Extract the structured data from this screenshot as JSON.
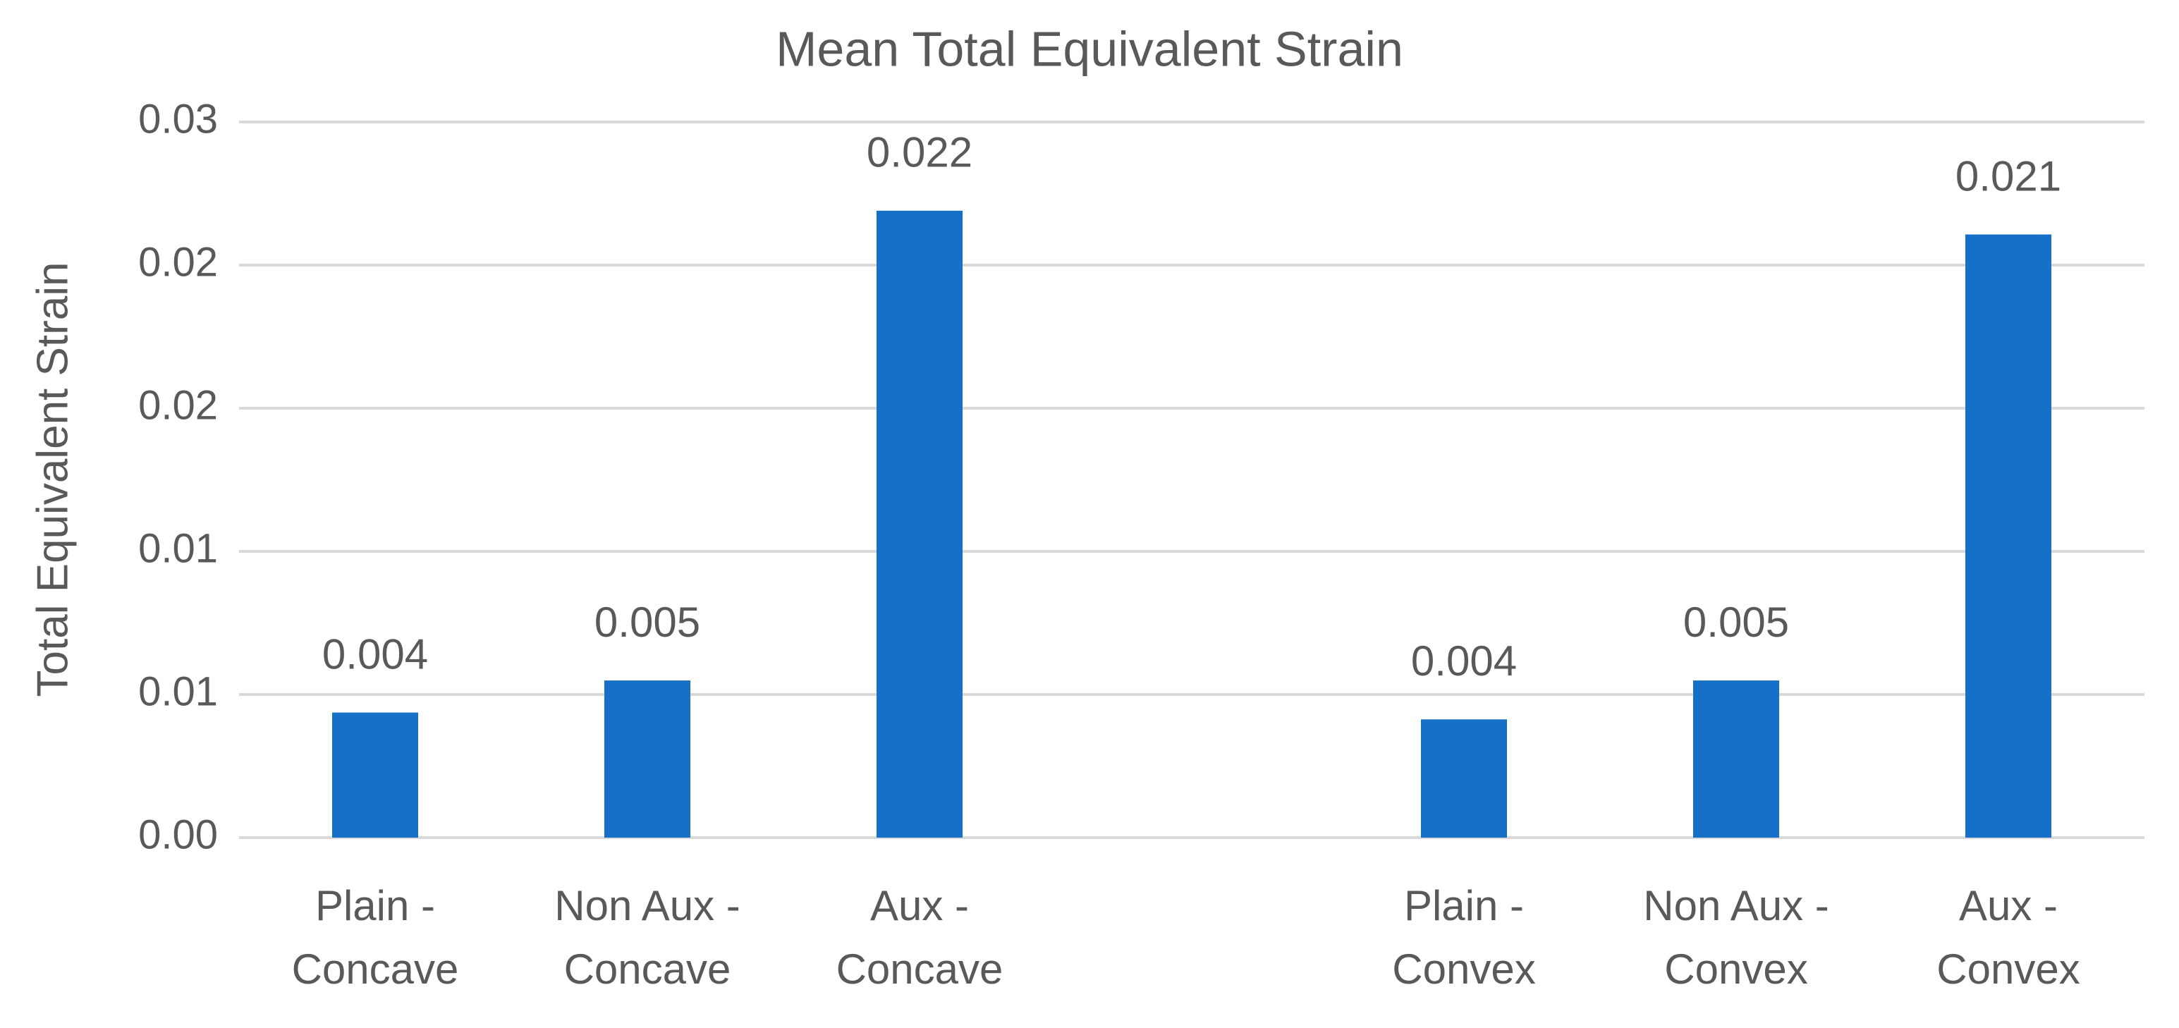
{
  "chart_data": {
    "type": "bar",
    "title": "Mean Total Equivalent Strain",
    "y_label": "Total Equivalent Strain",
    "categories": [
      "Plain -\nConcave",
      "Non Aux -\nConcave",
      "Aux -\nConcave",
      null,
      "Plain -\nConvex",
      "Non Aux -\nConvex",
      "Aux -\nConvex"
    ],
    "values": [
      0.00437,
      0.00549,
      0.0219,
      null,
      0.00413,
      0.00549,
      0.02107
    ],
    "value_labels": [
      "0.004",
      "0.005",
      "0.022",
      null,
      "0.004",
      "0.005",
      "0.021"
    ],
    "color": "#1670c8",
    "ylim": [
      0,
      0.025
    ],
    "yticks": [
      {
        "value": 0,
        "label": "0.00"
      },
      {
        "value": 0.005,
        "label": "0.01"
      },
      {
        "value": 0.01,
        "label": "0.01"
      },
      {
        "value": 0.015,
        "label": "0.02"
      },
      {
        "value": 0.02,
        "label": "0.02"
      },
      {
        "value": 0.025,
        "label": "0.03"
      }
    ],
    "grid": true
  }
}
